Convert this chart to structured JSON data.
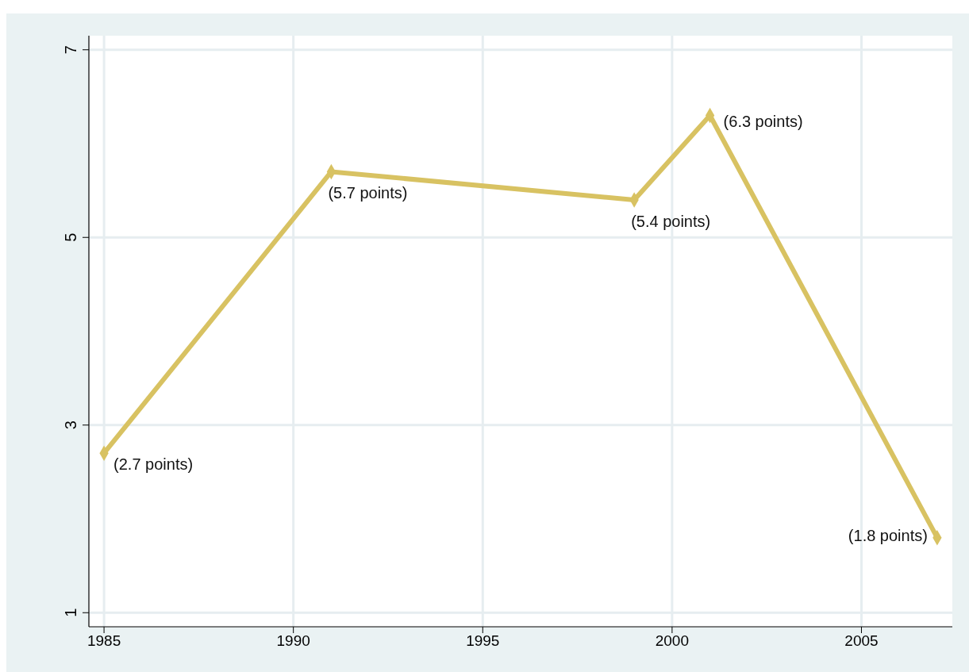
{
  "chart_data": {
    "type": "line",
    "x": [
      1985,
      1991,
      1999,
      2001,
      2007
    ],
    "series": [
      {
        "color": "#d8c262",
        "values": [
          2.7,
          5.7,
          5.4,
          6.3,
          1.8
        ],
        "value_labels": [
          "(2.7 points)",
          "(5.7 points)",
          "(5.4 points)",
          "(6.3 points)",
          "(1.8 points)"
        ]
      }
    ],
    "xlim": [
      1984.6,
      2007.4
    ],
    "ylim": [
      0.85,
      7.15
    ],
    "xticks": [
      1985,
      1990,
      1995,
      2000,
      2005
    ],
    "yticks": [
      1,
      3,
      5,
      7
    ],
    "grid": true,
    "marker": "diamond",
    "line_style": "solid"
  }
}
